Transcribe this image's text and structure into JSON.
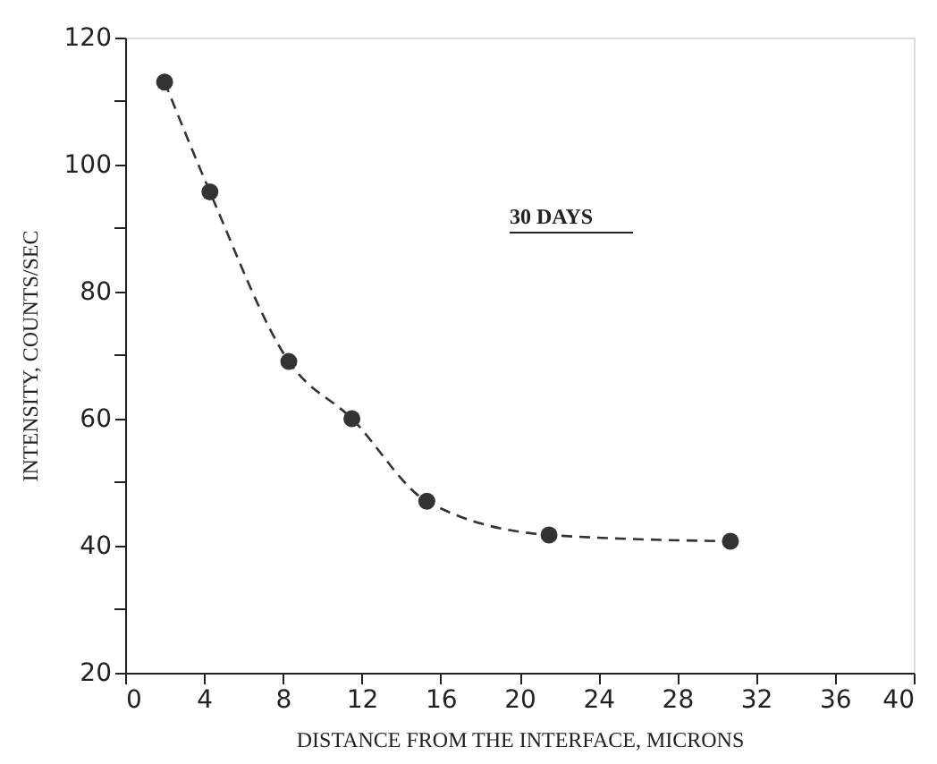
{
  "chart_data": {
    "type": "line",
    "xlabel": "DISTANCE FROM THE INTERFACE, MICRONS",
    "ylabel": "INTENSITY, COUNTS/SEC",
    "annotations": [
      "30 DAYS"
    ],
    "x": [
      2,
      4.3,
      8.3,
      11.5,
      15.3,
      21.5,
      30.7
    ],
    "series": [
      {
        "color": "#333333",
        "values": [
          113,
          95.7,
          69,
          60,
          47,
          41.7,
          40.7
        ]
      }
    ],
    "marker": "circle",
    "line_style": "dashed",
    "grid": false,
    "xlim": [
      0,
      40
    ],
    "xticks": [
      0,
      4,
      8,
      12,
      16,
      20,
      24,
      28,
      32,
      36,
      40
    ],
    "ylim": [
      20,
      120
    ],
    "yticks": [
      20,
      {
        "value": 30,
        "label": null
      },
      40,
      {
        "value": 50,
        "label": null
      },
      60,
      {
        "value": 70,
        "label": null
      },
      80,
      {
        "value": 90,
        "label": null
      },
      100,
      {
        "value": 110,
        "label": null
      },
      120
    ]
  }
}
